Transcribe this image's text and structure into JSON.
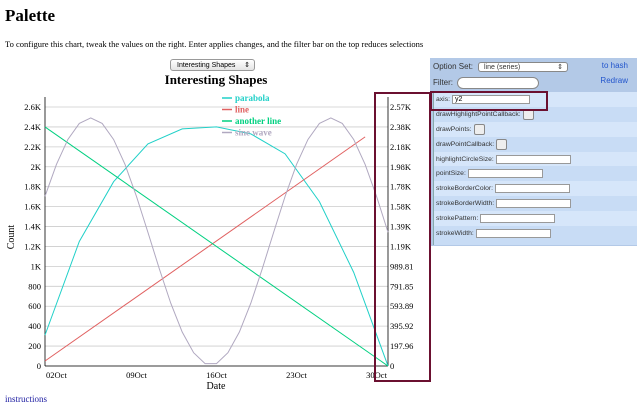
{
  "page": {
    "title": "Palette",
    "description": "To configure this chart, tweak the values on the right. Enter applies changes, and the filter bar on the top reduces selections",
    "instructions_link": "instructions"
  },
  "chart_select": {
    "value": "Interesting Shapes"
  },
  "panel": {
    "option_set_label": "Option Set:",
    "option_set_value": "line (series)",
    "filter_label": "Filter:",
    "filter_value": "",
    "to_hash": "to hash",
    "redraw": "Redraw",
    "options": [
      {
        "label": "axis:",
        "type": "text",
        "value": "y2"
      },
      {
        "label": "drawHighlightPointCallback:",
        "type": "button"
      },
      {
        "label": "drawPoints:",
        "type": "checkbox"
      },
      {
        "label": "drawPointCallback:",
        "type": "button"
      },
      {
        "label": "highlightCircleSize:",
        "type": "text",
        "value": ""
      },
      {
        "label": "pointSize:",
        "type": "text",
        "value": ""
      },
      {
        "label": "strokeBorderColor:",
        "type": "text",
        "value": ""
      },
      {
        "label": "strokeBorderWidth:",
        "type": "text",
        "value": ""
      },
      {
        "label": "strokePattern:",
        "type": "text",
        "value": ""
      },
      {
        "label": "strokeWidth:",
        "type": "text",
        "value": ""
      }
    ],
    "highlight_color": "#6b1030"
  },
  "chart_data": {
    "type": "line",
    "title": "Interesting Shapes",
    "xlabel": "Date",
    "ylabel": "Count",
    "x_ticks": [
      "02Oct",
      "09Oct",
      "16Oct",
      "23Oct",
      "30Oct"
    ],
    "y_ticks": [
      "0",
      "200",
      "400",
      "600",
      "800",
      "1K",
      "1.2K",
      "1.4K",
      "1.6K",
      "1.8K",
      "2K",
      "2.2K",
      "2.4K",
      "2.6K"
    ],
    "y2_ticks": [
      "0",
      "197.96",
      "395.92",
      "593.89",
      "791.85",
      "989.81",
      "1.19K",
      "1.39K",
      "1.58K",
      "1.78K",
      "1.98K",
      "2.18K",
      "2.38K",
      "2.57K"
    ],
    "ylim": [
      0,
      2600
    ],
    "y2lim": [
      0,
      2573.5
    ],
    "xlim": [
      "Oct 01",
      "Oct 31"
    ],
    "grid": "horizontal",
    "legend": "top-center",
    "series": [
      {
        "name": "parabola",
        "color": "#20d0c8",
        "x": [
          "Oct 01",
          "Oct 04",
          "Oct 07",
          "Oct 10",
          "Oct 13",
          "Oct 16",
          "Oct 19",
          "Oct 22",
          "Oct 25",
          "Oct 28",
          "Oct 31"
        ],
        "values": [
          310,
          1250,
          1850,
          2230,
          2380,
          2400,
          2330,
          2130,
          1650,
          940,
          0
        ]
      },
      {
        "name": "line",
        "color": "#e06060",
        "x": [
          "Oct 01",
          "Oct 29"
        ],
        "values": [
          50,
          2300
        ]
      },
      {
        "name": "another line",
        "color": "#00d080",
        "x": [
          "Oct 01",
          "Oct 31"
        ],
        "values": [
          2400,
          0
        ]
      },
      {
        "name": "sine wave",
        "color": "#b0a8c0",
        "x": [
          "Oct 01",
          "Oct 02",
          "Oct 03",
          "Oct 04",
          "Oct 05",
          "Oct 06",
          "Oct 07",
          "Oct 08",
          "Oct 09",
          "Oct 10",
          "Oct 11",
          "Oct 12",
          "Oct 13",
          "Oct 14",
          "Oct 15",
          "Oct 16",
          "Oct 17",
          "Oct 18",
          "Oct 19",
          "Oct 20",
          "Oct 21",
          "Oct 22",
          "Oct 23",
          "Oct 24",
          "Oct 25",
          "Oct 26",
          "Oct 27",
          "Oct 28",
          "Oct 29",
          "Oct 30",
          "Oct 31"
        ],
        "values": [
          1703,
          2023,
          2274,
          2435,
          2490,
          2435,
          2274,
          2023,
          1703,
          1343,
          975,
          630,
          341,
          133,
          24,
          24,
          133,
          341,
          630,
          975,
          1343,
          1703,
          2023,
          2274,
          2435,
          2490,
          2435,
          2274,
          2023,
          1703,
          1343
        ]
      }
    ]
  }
}
